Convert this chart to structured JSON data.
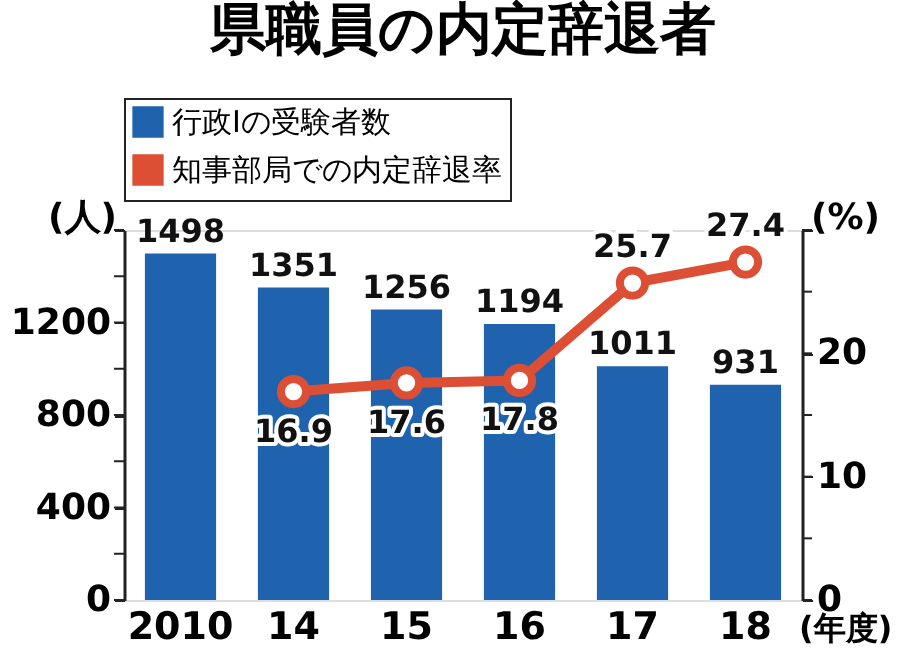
{
  "chart_data": {
    "type": "bar",
    "title": "県職員の内定辞退者",
    "categories": [
      "2010",
      "14",
      "15",
      "16",
      "17",
      "18"
    ],
    "xlabel": "(年度)",
    "ylabel": "(人)",
    "y2label": "(%)",
    "series": [
      {
        "name": "行政Ⅰの受験者数",
        "color": "#1f62ad",
        "values": [
          1498,
          1351,
          1256,
          1194,
          1011,
          931
        ]
      },
      {
        "name": "知事部局での内定辞退率",
        "type": "line",
        "axis": "y2",
        "color": "#dc4f35",
        "marker": "circle",
        "values": [
          null,
          16.9,
          17.6,
          17.8,
          25.7,
          27.4
        ]
      }
    ],
    "ylim": [
      0,
      1600
    ],
    "yticks": [
      0,
      {
        "value": 200,
        "label": null
      },
      400,
      {
        "value": 600,
        "label": null
      },
      800,
      {
        "value": 1000,
        "label": null
      },
      1200,
      {
        "value": 1400,
        "label": null
      },
      {
        "value": 1600,
        "label": null
      }
    ],
    "y2lim": [
      0,
      30
    ],
    "y2ticks": [
      0,
      {
        "value": 5,
        "label": null
      },
      10,
      {
        "value": 15,
        "label": null
      },
      20,
      {
        "value": 25,
        "label": null
      },
      {
        "value": 30,
        "label": null
      }
    ],
    "data_labels": true,
    "grid": false,
    "legend": "top left"
  }
}
